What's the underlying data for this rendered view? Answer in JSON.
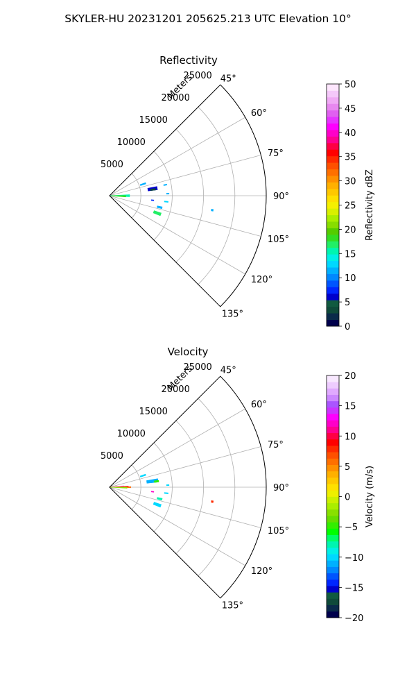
{
  "suptitle": "SKYLER-HU  20231201  205625.213 UTC Elevation 10°",
  "panels": [
    {
      "title": "Reflectivity",
      "radial_label": "Meters",
      "colorbar": {
        "label": "Reflectivity dBZ",
        "min": 0,
        "max": 50,
        "ticks": [
          "0",
          "5",
          "10",
          "15",
          "20",
          "25",
          "30",
          "35",
          "40",
          "45",
          "50"
        ],
        "colors": [
          "#00004c",
          "#0a2a4a",
          "#0f4a3a",
          "#115a40",
          "#0000cc",
          "#0026ff",
          "#0055ff",
          "#0088ff",
          "#00b0ff",
          "#00d8ff",
          "#00f0e6",
          "#00f5b0",
          "#22ee66",
          "#33dd22",
          "#55cc00",
          "#88dd00",
          "#aaee00",
          "#d8f000",
          "#f5f000",
          "#ffe000",
          "#ffc800",
          "#ffb000",
          "#ff9000",
          "#ff7000",
          "#ff5000",
          "#ff2a00",
          "#ff0000",
          "#ff0044",
          "#ff0090",
          "#ff00c8",
          "#ff00ff",
          "#e633ff",
          "#e060f0",
          "#e888f0",
          "#f0aaf5",
          "#f5c8fa",
          "#fde6fd"
        ]
      }
    },
    {
      "title": "Velocity",
      "radial_label": "Meters",
      "colorbar": {
        "label": "Velocity (m/s)",
        "min": -20,
        "max": 20,
        "ticks": [
          "−20",
          "−15",
          "−10",
          "−5",
          "0",
          "5",
          "10",
          "15",
          "20"
        ],
        "colors": [
          "#00004c",
          "#0a2a4a",
          "#0f4a3a",
          "#115a40",
          "#0000cc",
          "#0026ff",
          "#0055ff",
          "#0088ff",
          "#00b0ff",
          "#00d8ff",
          "#00f0e6",
          "#00f5b0",
          "#00ff66",
          "#00ff00",
          "#33ee00",
          "#66dd00",
          "#88e000",
          "#aaee00",
          "#ccf000",
          "#eef000",
          "#ffe000",
          "#ffc800",
          "#ffb000",
          "#ff9000",
          "#ff7000",
          "#ff5000",
          "#ff2a00",
          "#ff0000",
          "#ff0044",
          "#ff0090",
          "#ff00c8",
          "#ff00ff",
          "#cc33ff",
          "#aa55ff",
          "#cc88ff",
          "#e0aaff",
          "#eeccff",
          "#f8e8ff"
        ]
      }
    }
  ],
  "chart_data": [
    {
      "type": "polar_sector",
      "title": "Reflectivity",
      "azimuth_ticks": [
        "45°",
        "60°",
        "75°",
        "90°",
        "105°",
        "120°",
        "135°"
      ],
      "azimuth_range_deg": [
        45,
        135
      ],
      "range_ticks": [
        "5000",
        "10000",
        "15000",
        "20000",
        "25000"
      ],
      "range_max_m": 25000,
      "range_label": "Meters",
      "colorbar_label": "Reflectivity dBZ",
      "colorbar_range": [
        0,
        50
      ],
      "grid": true,
      "echoes": [
        {
          "az": 90,
          "r0": 0,
          "r1": 3200,
          "w": 6,
          "value": 16
        },
        {
          "az": 92,
          "r0": 300,
          "r1": 2600,
          "w": 5,
          "value": 18
        },
        {
          "az": 71,
          "r0": 5200,
          "r1": 6100,
          "w": 2,
          "value": 12
        },
        {
          "az": 81,
          "r0": 6200,
          "r1": 7700,
          "w": 4,
          "value": 6
        },
        {
          "az": 82,
          "r0": 6600,
          "r1": 7400,
          "w": 2,
          "value": 3
        },
        {
          "az": 79,
          "r0": 8800,
          "r1": 9300,
          "w": 1,
          "value": 12
        },
        {
          "az": 96,
          "r0": 6700,
          "r1": 7100,
          "w": 1,
          "value": 8
        },
        {
          "az": 103,
          "r0": 7800,
          "r1": 8600,
          "w": 2,
          "value": 12
        },
        {
          "az": 110,
          "r0": 7500,
          "r1": 8700,
          "w": 3,
          "value": 17
        },
        {
          "az": 96,
          "r0": 8800,
          "r1": 9400,
          "w": 1,
          "value": 13
        },
        {
          "az": 88,
          "r0": 9100,
          "r1": 9500,
          "w": 1,
          "value": 12
        },
        {
          "az": 98,
          "r0": 16400,
          "r1": 16700,
          "w": 1,
          "value": 12
        }
      ]
    },
    {
      "type": "polar_sector",
      "title": "Velocity",
      "azimuth_ticks": [
        "45°",
        "60°",
        "75°",
        "90°",
        "105°",
        "120°",
        "135°"
      ],
      "azimuth_range_deg": [
        45,
        135
      ],
      "range_ticks": [
        "5000",
        "10000",
        "15000",
        "20000",
        "25000"
      ],
      "range_max_m": 25000,
      "range_label": "Meters",
      "colorbar_label": "Velocity (m/s)",
      "colorbar_range": [
        -20,
        20
      ],
      "grid": true,
      "echoes": [
        {
          "az": 86,
          "r0": 0,
          "r1": 2300,
          "w": 3,
          "value": 17
        },
        {
          "az": 88,
          "r0": 0,
          "r1": 3000,
          "w": 3,
          "value": 10
        },
        {
          "az": 90,
          "r0": 0,
          "r1": 3400,
          "w": 3,
          "value": 6
        },
        {
          "az": 92,
          "r0": 0,
          "r1": 2800,
          "w": 3,
          "value": -3
        },
        {
          "az": 71,
          "r0": 5200,
          "r1": 6100,
          "w": 2,
          "value": -10
        },
        {
          "az": 82,
          "r0": 6000,
          "r1": 7800,
          "w": 4,
          "value": -11
        },
        {
          "az": 83,
          "r0": 7200,
          "r1": 7900,
          "w": 2,
          "value": -5
        },
        {
          "az": 96,
          "r0": 6700,
          "r1": 7100,
          "w": 1,
          "value": 12
        },
        {
          "az": 103,
          "r0": 7800,
          "r1": 8600,
          "w": 2,
          "value": -8
        },
        {
          "az": 110,
          "r0": 7500,
          "r1": 8700,
          "w": 3,
          "value": -10
        },
        {
          "az": 96,
          "r0": 8800,
          "r1": 9400,
          "w": 1,
          "value": -10
        },
        {
          "az": 88,
          "r0": 9100,
          "r1": 9500,
          "w": 1,
          "value": -10
        },
        {
          "az": 98,
          "r0": 16400,
          "r1": 16700,
          "w": 1,
          "value": 8
        }
      ]
    }
  ]
}
